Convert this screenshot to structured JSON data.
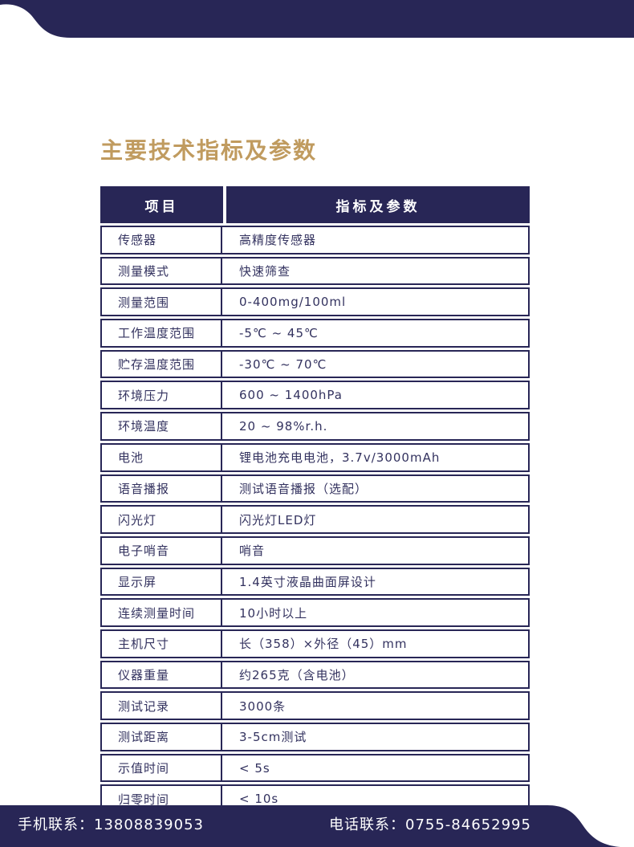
{
  "colors": {
    "navy": "#282656",
    "gold": "#C09B5F",
    "cell_text": "#33325F",
    "header_text": "#FFFFFF"
  },
  "title": "主要技术指标及参数",
  "table": {
    "headers": [
      "项目",
      "指标及参数"
    ],
    "rows": [
      {
        "item": "传感器",
        "value": "高精度传感器"
      },
      {
        "item": "测量模式",
        "value": "快速筛查"
      },
      {
        "item": "测量范围",
        "value": "0-400mg/100ml"
      },
      {
        "item": "工作温度范围",
        "value": "-5℃ ~ 45℃"
      },
      {
        "item": "贮存温度范围",
        "value": "-30℃ ~ 70℃"
      },
      {
        "item": "环境压力",
        "value": "600 ~ 1400hPa"
      },
      {
        "item": "环境温度",
        "value": "20 ~ 98%r.h."
      },
      {
        "item": "电池",
        "value": "锂电池充电电池，3.7v/3000mAh"
      },
      {
        "item": "语音播报",
        "value": "测试语音播报（选配）"
      },
      {
        "item": "闪光灯",
        "value": "闪光灯LED灯"
      },
      {
        "item": "电子哨音",
        "value": "哨音"
      },
      {
        "item": "显示屏",
        "value": "1.4英寸液晶曲面屏设计"
      },
      {
        "item": "连续测量时间",
        "value": "10小时以上"
      },
      {
        "item": "主机尺寸",
        "value": "长（358）×外径（45）mm"
      },
      {
        "item": "仪器重量",
        "value": "约265克（含电池）"
      },
      {
        "item": "测试记录",
        "value": "3000条"
      },
      {
        "item": "测试距离",
        "value": "3-5cm测试"
      },
      {
        "item": "示值时间",
        "value": "< 5s"
      },
      {
        "item": "归零时间",
        "value": "< 10s"
      }
    ]
  },
  "footer": {
    "mobile_label": "手机联系：",
    "mobile_number": "13808839053",
    "phone_label": "电话联系：",
    "phone_number": "0755-84652995"
  }
}
